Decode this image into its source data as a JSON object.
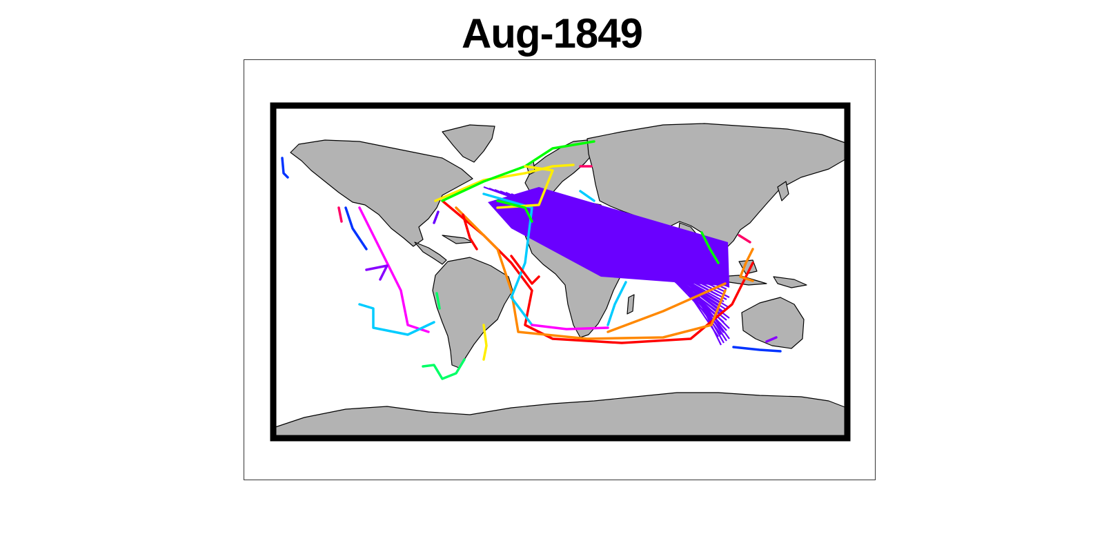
{
  "title": "Aug-1849",
  "colors": {
    "land": "#b3b3b3",
    "coast": "#000000",
    "frame": "#000000",
    "ocean": "#ffffff",
    "bundle": "#6a00ff"
  },
  "tracks": [
    {
      "color": "#6a00ff"
    },
    {
      "color": "#00ff00"
    },
    {
      "color": "#ffee00"
    },
    {
      "color": "#ff8800"
    },
    {
      "color": "#ff0000"
    },
    {
      "color": "#00ccff"
    },
    {
      "color": "#ff00ff"
    },
    {
      "color": "#0033ff"
    },
    {
      "color": "#ff0066"
    },
    {
      "color": "#00ff66"
    },
    {
      "color": "#8800ff"
    }
  ]
}
